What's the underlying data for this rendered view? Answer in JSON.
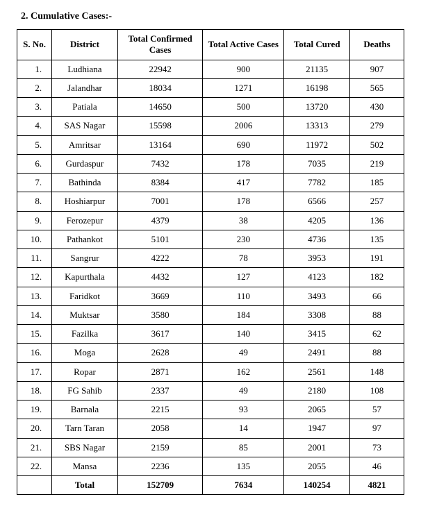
{
  "heading": "2.  Cumulative Cases:-",
  "table": {
    "columns": [
      "S. No.",
      "District",
      "Total Confirmed Cases",
      "Total Active Cases",
      "Total Cured",
      "Deaths"
    ],
    "rows": [
      {
        "sno": "1.",
        "district": "Ludhiana",
        "confirmed": "22942",
        "active": "900",
        "cured": "21135",
        "deaths": "907"
      },
      {
        "sno": "2.",
        "district": "Jalandhar",
        "confirmed": "18034",
        "active": "1271",
        "cured": "16198",
        "deaths": "565"
      },
      {
        "sno": "3.",
        "district": "Patiala",
        "confirmed": "14650",
        "active": "500",
        "cured": "13720",
        "deaths": "430"
      },
      {
        "sno": "4.",
        "district": "SAS Nagar",
        "confirmed": "15598",
        "active": "2006",
        "cured": "13313",
        "deaths": "279"
      },
      {
        "sno": "5.",
        "district": "Amritsar",
        "confirmed": "13164",
        "active": "690",
        "cured": "11972",
        "deaths": "502"
      },
      {
        "sno": "6.",
        "district": "Gurdaspur",
        "confirmed": "7432",
        "active": "178",
        "cured": "7035",
        "deaths": "219"
      },
      {
        "sno": "7.",
        "district": "Bathinda",
        "confirmed": "8384",
        "active": "417",
        "cured": "7782",
        "deaths": "185"
      },
      {
        "sno": "8.",
        "district": "Hoshiarpur",
        "confirmed": "7001",
        "active": "178",
        "cured": "6566",
        "deaths": "257"
      },
      {
        "sno": "9.",
        "district": "Ferozepur",
        "confirmed": "4379",
        "active": "38",
        "cured": "4205",
        "deaths": "136"
      },
      {
        "sno": "10.",
        "district": "Pathankot",
        "confirmed": "5101",
        "active": "230",
        "cured": "4736",
        "deaths": "135"
      },
      {
        "sno": "11.",
        "district": "Sangrur",
        "confirmed": "4222",
        "active": "78",
        "cured": "3953",
        "deaths": "191"
      },
      {
        "sno": "12.",
        "district": "Kapurthala",
        "confirmed": "4432",
        "active": "127",
        "cured": "4123",
        "deaths": "182"
      },
      {
        "sno": "13.",
        "district": "Faridkot",
        "confirmed": "3669",
        "active": "110",
        "cured": "3493",
        "deaths": "66"
      },
      {
        "sno": "14.",
        "district": "Muktsar",
        "confirmed": "3580",
        "active": "184",
        "cured": "3308",
        "deaths": "88"
      },
      {
        "sno": "15.",
        "district": "Fazilka",
        "confirmed": "3617",
        "active": "140",
        "cured": "3415",
        "deaths": "62"
      },
      {
        "sno": "16.",
        "district": "Moga",
        "confirmed": "2628",
        "active": "49",
        "cured": "2491",
        "deaths": "88"
      },
      {
        "sno": "17.",
        "district": "Ropar",
        "confirmed": "2871",
        "active": "162",
        "cured": "2561",
        "deaths": "148"
      },
      {
        "sno": "18.",
        "district": "FG Sahib",
        "confirmed": "2337",
        "active": "49",
        "cured": "2180",
        "deaths": "108"
      },
      {
        "sno": "19.",
        "district": "Barnala",
        "confirmed": "2215",
        "active": "93",
        "cured": "2065",
        "deaths": "57"
      },
      {
        "sno": "20.",
        "district": "Tarn Taran",
        "confirmed": "2058",
        "active": "14",
        "cured": "1947",
        "deaths": "97"
      },
      {
        "sno": "21.",
        "district": "SBS Nagar",
        "confirmed": "2159",
        "active": "85",
        "cured": "2001",
        "deaths": "73"
      },
      {
        "sno": "22.",
        "district": "Mansa",
        "confirmed": "2236",
        "active": "135",
        "cured": "2055",
        "deaths": "46"
      }
    ],
    "total": {
      "label": "Total",
      "confirmed": "152709",
      "active": "7634",
      "cured": "140254",
      "deaths": "4821"
    }
  }
}
